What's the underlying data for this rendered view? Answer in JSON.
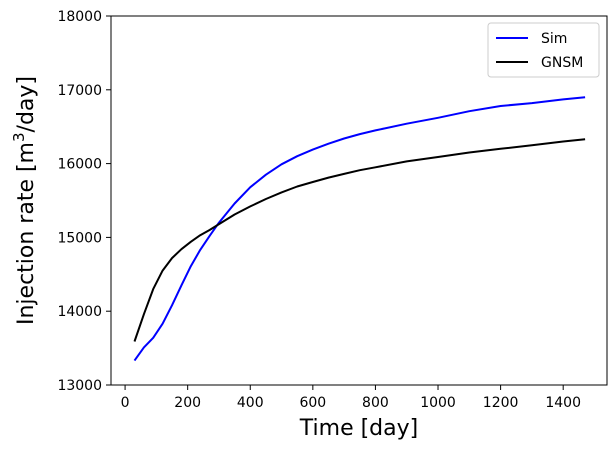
{
  "chart_data": {
    "type": "line",
    "xlabel": "Time [day]",
    "ylabel_prefix": "Injection rate [m",
    "ylabel_sup": "3",
    "ylabel_suffix": "/day]",
    "xlim": [
      -45,
      1540
    ],
    "ylim": [
      13000,
      18000
    ],
    "xticks": [
      0,
      200,
      400,
      600,
      800,
      1000,
      1200,
      1400
    ],
    "yticks": [
      13000,
      14000,
      15000,
      16000,
      17000,
      18000
    ],
    "grid": false,
    "legend_position": "top-right",
    "series": [
      {
        "name": "Sim",
        "color": "#0000ff",
        "x": [
          30,
          60,
          90,
          120,
          150,
          180,
          210,
          240,
          270,
          300,
          350,
          400,
          450,
          500,
          550,
          600,
          650,
          700,
          750,
          800,
          900,
          1000,
          1100,
          1200,
          1300,
          1400,
          1470
        ],
        "y": [
          13330,
          13510,
          13640,
          13830,
          14080,
          14350,
          14610,
          14830,
          15020,
          15200,
          15460,
          15680,
          15850,
          15990,
          16100,
          16190,
          16270,
          16340,
          16400,
          16450,
          16540,
          16620,
          16710,
          16780,
          16820,
          16870,
          16900
        ]
      },
      {
        "name": "GNSM",
        "color": "#000000",
        "x": [
          30,
          60,
          90,
          120,
          150,
          180,
          210,
          240,
          270,
          300,
          350,
          400,
          450,
          500,
          550,
          600,
          650,
          700,
          750,
          800,
          900,
          1000,
          1100,
          1200,
          1300,
          1400,
          1470
        ],
        "y": [
          13590,
          13960,
          14300,
          14550,
          14720,
          14840,
          14940,
          15030,
          15100,
          15180,
          15310,
          15420,
          15520,
          15610,
          15690,
          15750,
          15810,
          15860,
          15910,
          15950,
          16030,
          16090,
          16150,
          16200,
          16250,
          16300,
          16330
        ]
      }
    ]
  }
}
